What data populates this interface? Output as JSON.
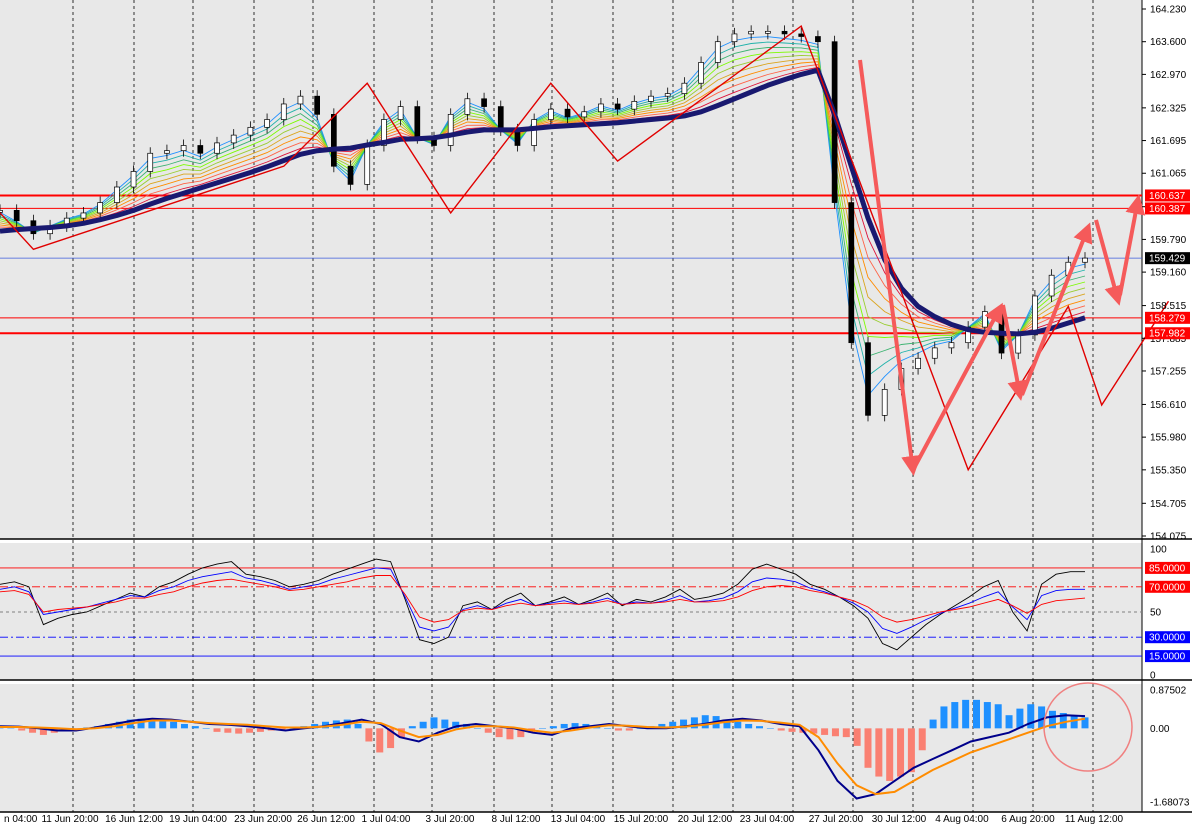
{
  "chart_data": [
    {
      "type": "line",
      "panel": "price",
      "y_ticks": [
        "164.230",
        "163.600",
        "162.970",
        "162.325",
        "161.695",
        "161.065",
        "160.420",
        "159.790",
        "159.160",
        "158.515",
        "157.885",
        "157.255",
        "156.610",
        "155.980",
        "155.350",
        "154.705",
        "154.075"
      ],
      "ylim": [
        154.075,
        164.23
      ],
      "x_ticks": [
        "n 04:00",
        "11 Jun 20:00",
        "16 Jun 12:00",
        "19 Jun 04:00",
        "23 Jun 20:00",
        "26 Jun 12:00",
        "1 Jul 04:00",
        "3 Jul 20:00",
        "8 Jul 12:00",
        "13 Jul 04:00",
        "15 Jul 20:00",
        "20 Jul 12:00",
        "23 Jul 04:00",
        "27 Jul 20:00",
        "30 Jul 12:00",
        "4 Aug 04:00",
        "6 Aug 20:00",
        "11 Aug 12:00"
      ],
      "current_price": "159.429",
      "horizontal_levels": [
        {
          "label": "160.637",
          "value": 160.637,
          "color": "#ff0000"
        },
        {
          "label": "160.387",
          "value": 160.387,
          "color": "#ff0000"
        },
        {
          "label": "158.279",
          "value": 158.279,
          "color": "#ff0000"
        },
        {
          "label": "157.982",
          "value": 157.982,
          "color": "#ff0000"
        }
      ],
      "current_price_line": {
        "value": 159.429,
        "color": "#3b5bdb"
      },
      "zigzag_points": [
        [
          0,
          160.3
        ],
        [
          2,
          159.6
        ],
        [
          17,
          161.2
        ],
        [
          22,
          162.8
        ],
        [
          27,
          160.3
        ],
        [
          33,
          162.8
        ],
        [
          37,
          161.3
        ],
        [
          48,
          163.9
        ],
        [
          58,
          155.35
        ],
        [
          64,
          158.5
        ],
        [
          66,
          156.6
        ],
        [
          70,
          158.6
        ]
      ],
      "close_series": [
        160.35,
        160.15,
        159.9,
        160.05,
        160.2,
        160.3,
        160.5,
        160.8,
        161.1,
        161.45,
        161.5,
        161.6,
        161.45,
        161.65,
        161.8,
        161.95,
        162.1,
        162.4,
        162.55,
        162.2,
        161.2,
        160.85,
        161.6,
        162.1,
        162.35,
        161.75,
        161.6,
        162.2,
        162.5,
        162.35,
        161.9,
        161.6,
        162.1,
        162.3,
        162.15,
        162.25,
        162.4,
        162.3,
        162.45,
        162.55,
        162.6,
        162.8,
        163.2,
        163.6,
        163.75,
        163.8,
        163.8,
        163.75,
        163.7,
        163.6,
        160.5,
        157.8,
        156.4,
        156.9,
        157.3,
        157.5,
        157.7,
        157.8,
        158.1,
        158.4,
        157.6,
        157.95,
        158.7,
        159.1,
        159.35,
        159.43
      ],
      "ema_slow": [
        159.95,
        159.98,
        160.0,
        160.02,
        160.05,
        160.1,
        160.17,
        160.25,
        160.35,
        160.47,
        160.58,
        160.68,
        160.78,
        160.88,
        160.98,
        161.08,
        161.19,
        161.31,
        161.43,
        161.5,
        161.53,
        161.55,
        161.61,
        161.66,
        161.72,
        161.73,
        161.75,
        161.8,
        161.86,
        161.9,
        161.9,
        161.9,
        161.93,
        161.96,
        161.98,
        162.0,
        162.02,
        162.04,
        162.07,
        162.1,
        162.13,
        162.17,
        162.25,
        162.37,
        162.5,
        162.63,
        162.76,
        162.87,
        162.97,
        163.05,
        162.2,
        161.2,
        160.2,
        159.4,
        158.85,
        158.5,
        158.3,
        158.15,
        158.05,
        158.0,
        157.98,
        157.97,
        158.0,
        158.08,
        158.18,
        158.28
      ]
    },
    {
      "type": "line",
      "panel": "rsi",
      "y_ticks": [
        "100",
        "85.0000",
        "70.0000",
        "50",
        "30.0000",
        "15.0000",
        "0"
      ],
      "ylim": [
        0,
        100
      ],
      "levels": [
        {
          "label": "85.0000",
          "value": 85,
          "color": "#ff0000",
          "style": "solid"
        },
        {
          "label": "70.0000",
          "value": 70,
          "color": "#ff0000",
          "style": "dashdot"
        },
        {
          "label": "50",
          "value": 50,
          "color": "#808080",
          "style": "dash"
        },
        {
          "label": "30.0000",
          "value": 30,
          "color": "#0000ff",
          "style": "dashdot"
        },
        {
          "label": "15.0000",
          "value": 15,
          "color": "#0000ff",
          "style": "solid"
        }
      ],
      "series": [
        {
          "color": "#000000",
          "values": [
            72,
            74,
            70,
            40,
            45,
            48,
            50,
            55,
            60,
            65,
            62,
            70,
            74,
            80,
            85,
            88,
            90,
            80,
            78,
            75,
            70,
            72,
            75,
            80,
            84,
            88,
            92,
            90,
            60,
            28,
            25,
            30,
            55,
            58,
            52,
            60,
            65,
            55,
            58,
            62,
            56,
            60,
            65,
            55,
            60,
            58,
            62,
            68,
            60,
            62,
            65,
            72,
            84,
            88,
            84,
            80,
            72,
            68,
            62,
            55,
            45,
            25,
            20,
            30,
            40,
            48,
            55,
            62,
            70,
            75,
            50,
            35,
            72,
            80,
            82,
            82
          ]
        },
        {
          "color": "#0000ff",
          "values": [
            68,
            70,
            66,
            48,
            50,
            52,
            54,
            57,
            60,
            63,
            62,
            67,
            70,
            75,
            78,
            80,
            82,
            77,
            75,
            72,
            68,
            70,
            72,
            76,
            79,
            82,
            85,
            84,
            62,
            38,
            35,
            38,
            52,
            55,
            52,
            57,
            60,
            55,
            57,
            59,
            56,
            58,
            61,
            56,
            58,
            57,
            59,
            63,
            58,
            59,
            61,
            66,
            74,
            77,
            76,
            74,
            69,
            66,
            62,
            57,
            50,
            37,
            33,
            38,
            44,
            49,
            53,
            57,
            62,
            66,
            54,
            44,
            63,
            67,
            68,
            68
          ]
        },
        {
          "color": "#ff0000",
          "values": [
            66,
            67,
            64,
            50,
            52,
            53,
            54,
            56,
            58,
            61,
            61,
            64,
            66,
            70,
            73,
            75,
            76,
            74,
            72,
            70,
            67,
            68,
            70,
            72,
            74,
            77,
            79,
            79,
            64,
            46,
            42,
            44,
            51,
            53,
            52,
            55,
            57,
            55,
            56,
            57,
            56,
            57,
            59,
            56,
            57,
            57,
            58,
            60,
            58,
            58,
            59,
            62,
            67,
            70,
            71,
            70,
            67,
            65,
            62,
            59,
            54,
            46,
            42,
            44,
            47,
            50,
            52,
            54,
            57,
            60,
            55,
            49,
            56,
            59,
            60,
            61
          ]
        }
      ]
    },
    {
      "type": "bar",
      "panel": "macd",
      "y_ticks": [
        "0.87502",
        "0.00",
        "-1.68073"
      ],
      "ylim": [
        -1.68073,
        0.87502
      ],
      "histogram_positive_color": "#1e90ff",
      "histogram_negative_color": "#fa8072",
      "histogram": [
        0.05,
        0.02,
        -0.05,
        -0.1,
        -0.15,
        -0.1,
        -0.05,
        -0.02,
        0.02,
        0.05,
        0.1,
        0.15,
        0.2,
        0.22,
        0.2,
        0.18,
        0.15,
        0.1,
        0.05,
        0.0,
        -0.08,
        -0.1,
        -0.12,
        -0.1,
        -0.08,
        -0.05,
        -0.03,
        0.0,
        0.05,
        0.1,
        0.15,
        0.18,
        0.2,
        0.1,
        -0.3,
        -0.55,
        -0.45,
        -0.2,
        0.05,
        0.15,
        0.25,
        0.2,
        0.15,
        0.1,
        0.0,
        -0.1,
        -0.2,
        -0.25,
        -0.2,
        -0.1,
        0.0,
        0.05,
        0.1,
        0.12,
        0.1,
        0.05,
        0.0,
        -0.05,
        -0.05,
        0.0,
        0.05,
        0.1,
        0.15,
        0.2,
        0.25,
        0.3,
        0.28,
        0.2,
        0.15,
        0.1,
        0.05,
        0.0,
        -0.05,
        -0.08,
        -0.1,
        -0.12,
        -0.15,
        -0.18,
        -0.2,
        -0.4,
        -0.9,
        -1.1,
        -1.2,
        -1.1,
        -1.0,
        -0.5,
        0.2,
        0.5,
        0.6,
        0.65,
        0.65,
        0.6,
        0.55,
        0.3,
        0.45,
        0.55,
        0.5,
        0.4,
        0.35,
        0.3,
        0.25
      ],
      "series": [
        {
          "color": "#00008b",
          "values": [
            0.05,
            0.04,
            0.0,
            -0.05,
            -0.05,
            0.02,
            0.1,
            0.18,
            0.22,
            0.2,
            0.15,
            0.1,
            0.08,
            0.05,
            0.0,
            -0.05,
            0.0,
            0.05,
            0.12,
            0.2,
            0.1,
            -0.2,
            -0.3,
            -0.1,
            0.05,
            0.1,
            0.05,
            0.0,
            -0.1,
            -0.15,
            0.0,
            0.05,
            0.1,
            0.05,
            0.0,
            0.0,
            0.05,
            0.1,
            0.18,
            0.22,
            0.18,
            0.1,
            0.05,
            -0.5,
            -1.2,
            -1.6,
            -1.5,
            -1.2,
            -0.9,
            -0.7,
            -0.5,
            -0.3,
            -0.2,
            -0.1,
            0.1,
            0.25,
            0.3,
            0.28
          ]
        },
        {
          "color": "#ff8c00",
          "values": [
            0.03,
            0.03,
            0.02,
            0.0,
            -0.02,
            0.0,
            0.05,
            0.12,
            0.18,
            0.18,
            0.15,
            0.12,
            0.1,
            0.08,
            0.05,
            0.02,
            0.02,
            0.04,
            0.08,
            0.15,
            0.12,
            -0.05,
            -0.2,
            -0.15,
            -0.02,
            0.05,
            0.05,
            0.02,
            -0.05,
            -0.1,
            -0.05,
            0.02,
            0.07,
            0.06,
            0.03,
            0.02,
            0.04,
            0.08,
            0.14,
            0.18,
            0.17,
            0.13,
            0.08,
            -0.2,
            -0.8,
            -1.3,
            -1.5,
            -1.45,
            -1.2,
            -0.95,
            -0.75,
            -0.55,
            -0.4,
            -0.25,
            -0.1,
            0.05,
            0.15,
            0.22
          ]
        }
      ]
    }
  ]
}
